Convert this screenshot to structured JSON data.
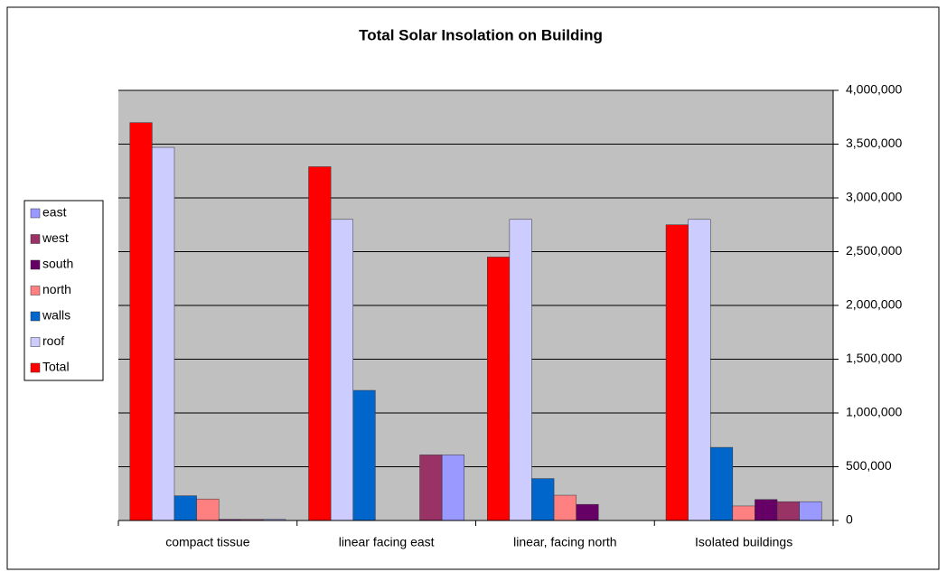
{
  "chart_data": {
    "type": "bar",
    "title": "Total Solar Insolation on Building",
    "categories": [
      "compact tissue",
      "linear facing east",
      "linear, facing north",
      "Isolated buildings"
    ],
    "series": [
      {
        "name": "Total",
        "color": "#ff0000",
        "values": [
          3700000,
          3290000,
          2450000,
          2750000
        ]
      },
      {
        "name": "roof",
        "color": "#ccccff",
        "values": [
          3470000,
          2800000,
          2800000,
          2800000
        ]
      },
      {
        "name": "walls",
        "color": "#0066cc",
        "values": [
          230000,
          1210000,
          390000,
          680000
        ]
      },
      {
        "name": "north",
        "color": "#ff8080",
        "values": [
          200000,
          0,
          235000,
          135000
        ]
      },
      {
        "name": "south",
        "color": "#660066",
        "values": [
          10000,
          0,
          150000,
          195000
        ]
      },
      {
        "name": "west",
        "color": "#993366",
        "values": [
          10000,
          610000,
          0,
          175000
        ]
      },
      {
        "name": "east",
        "color": "#9999ff",
        "values": [
          10000,
          610000,
          0,
          175000
        ]
      }
    ],
    "ylim": [
      0,
      4000000
    ],
    "yticks": [
      0,
      {
        "value": 500000,
        "label": "500,000"
      },
      {
        "value": 1000000,
        "label": "1,000,000"
      },
      {
        "value": 1500000,
        "label": "1,500,000"
      },
      {
        "value": 2000000,
        "label": "2,000,000"
      },
      {
        "value": 2500000,
        "label": "2,500,000"
      },
      {
        "value": 3000000,
        "label": "3,000,000"
      },
      {
        "value": 3500000,
        "label": "3,500,000"
      },
      {
        "value": 4000000,
        "label": "4,000,000"
      }
    ],
    "grid": true,
    "legend": "left"
  }
}
